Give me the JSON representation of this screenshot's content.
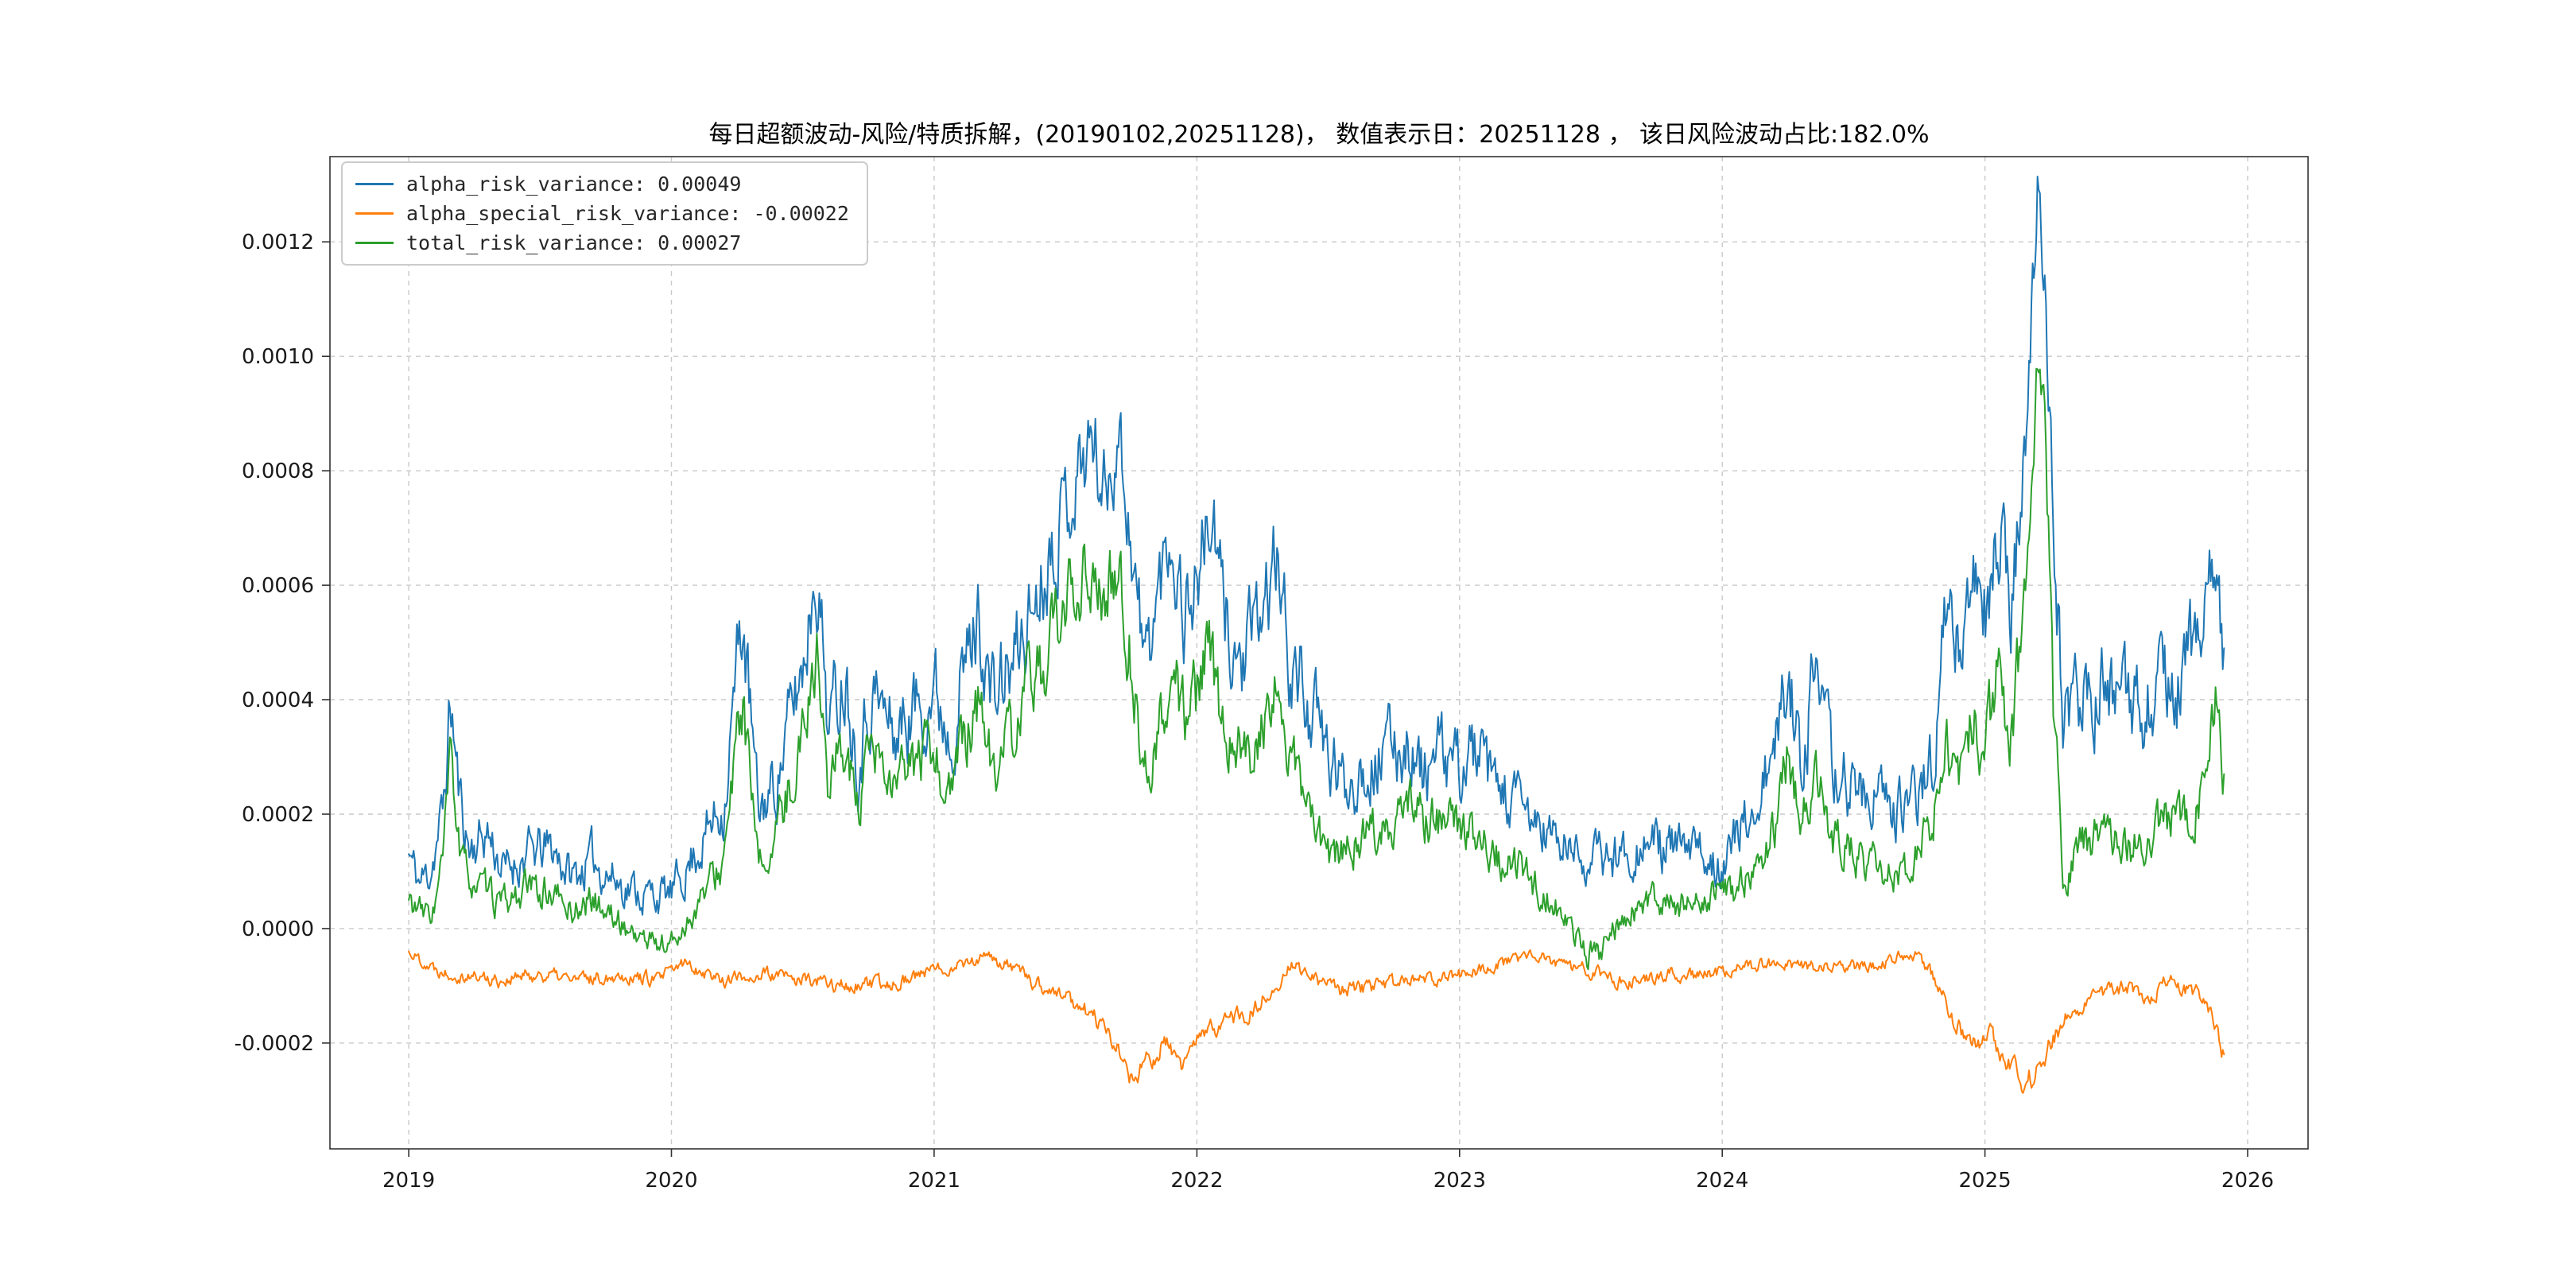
{
  "page": {
    "background": "#ffffff"
  },
  "chart_data": {
    "type": "line",
    "title": "每日超额波动-风险/特质拆解，(20190102,20251128)， 数值表示日：20251128 ， 该日风险波动占比:182.0%",
    "value_date": "20251128",
    "risk_ratio_pct": "182.0%",
    "date_range": [
      "20190102",
      "20251128"
    ],
    "grid": {
      "visible": true,
      "style": "dashed",
      "color": "#c9c9c9"
    },
    "legend": {
      "position": "upper-left"
    },
    "xlim": [
      2018.7,
      2026.23
    ],
    "ylim": [
      -0.000385,
      0.001349
    ],
    "x_tick_values": [
      2019,
      2020,
      2021,
      2022,
      2023,
      2024,
      2025,
      2026
    ],
    "x_tick_labels": [
      "2019",
      "2020",
      "2021",
      "2022",
      "2023",
      "2024",
      "2025",
      "2026"
    ],
    "y_tick_values": [
      -0.0002,
      0.0,
      0.0002,
      0.0004,
      0.0006,
      0.0008,
      0.001,
      0.0012
    ],
    "y_tick_labels": [
      "-0.0002",
      "0.0000",
      "0.0002",
      "0.0004",
      "0.0006",
      "0.0008",
      "0.0010",
      "0.0012"
    ],
    "series": [
      {
        "name": "alpha_risk_variance",
        "label": "alpha_risk_variance: 0.00049",
        "last_value": 0.00049,
        "color": "#1f77b4",
        "noise_amp": 6.5e-05,
        "seed": 11,
        "keypoints": [
          [
            2019.0,
            0.00013
          ],
          [
            2019.04,
            8e-05
          ],
          [
            2019.08,
            0.0001
          ],
          [
            2019.13,
            0.0002
          ],
          [
            2019.16,
            0.0004
          ],
          [
            2019.19,
            0.00024
          ],
          [
            2019.23,
            0.00014
          ],
          [
            2019.3,
            0.00017
          ],
          [
            2019.36,
            0.0001
          ],
          [
            2019.45,
            0.00013
          ],
          [
            2019.55,
            0.00014
          ],
          [
            2019.62,
            9e-05
          ],
          [
            2019.7,
            0.00012
          ],
          [
            2019.8,
            8e-05
          ],
          [
            2019.9,
            6e-05
          ],
          [
            2020.0,
            6e-05
          ],
          [
            2020.1,
            0.00014
          ],
          [
            2020.2,
            0.00022
          ],
          [
            2020.27,
            0.00055
          ],
          [
            2020.33,
            0.0002
          ],
          [
            2020.4,
            0.00026
          ],
          [
            2020.5,
            0.00046
          ],
          [
            2020.55,
            0.00065
          ],
          [
            2020.6,
            0.00036
          ],
          [
            2020.66,
            0.00046
          ],
          [
            2020.71,
            0.0003
          ],
          [
            2020.76,
            0.00042
          ],
          [
            2020.85,
            0.00034
          ],
          [
            2020.95,
            0.0004
          ],
          [
            2021.0,
            0.00042
          ],
          [
            2021.06,
            0.00035
          ],
          [
            2021.12,
            0.00046
          ],
          [
            2021.17,
            0.00055
          ],
          [
            2021.22,
            0.0004
          ],
          [
            2021.3,
            0.00046
          ],
          [
            2021.4,
            0.0006
          ],
          [
            2021.46,
            0.0007
          ],
          [
            2021.55,
            0.0008
          ],
          [
            2021.6,
            0.00086
          ],
          [
            2021.65,
            0.00076
          ],
          [
            2021.7,
            0.00088
          ],
          [
            2021.75,
            0.00068
          ],
          [
            2021.8,
            0.00046
          ],
          [
            2021.86,
            0.0006
          ],
          [
            2021.9,
            0.0007
          ],
          [
            2021.95,
            0.00056
          ],
          [
            2022.0,
            0.00061
          ],
          [
            2022.05,
            0.00072
          ],
          [
            2022.1,
            0.00056
          ],
          [
            2022.16,
            0.00046
          ],
          [
            2022.22,
            0.0005
          ],
          [
            2022.3,
            0.00064
          ],
          [
            2022.36,
            0.00046
          ],
          [
            2022.42,
            0.0004
          ],
          [
            2022.5,
            0.0003
          ],
          [
            2022.56,
            0.00025
          ],
          [
            2022.62,
            0.00028
          ],
          [
            2022.7,
            0.0003
          ],
          [
            2022.8,
            0.00033
          ],
          [
            2022.86,
            0.00027
          ],
          [
            2022.92,
            0.0003
          ],
          [
            2023.0,
            0.00028
          ],
          [
            2023.06,
            0.00031
          ],
          [
            2023.12,
            0.00025
          ],
          [
            2023.2,
            0.00022
          ],
          [
            2023.3,
            0.00018
          ],
          [
            2023.4,
            0.00014
          ],
          [
            2023.5,
            0.00012
          ],
          [
            2023.6,
            0.00013
          ],
          [
            2023.7,
            0.00015
          ],
          [
            2023.8,
            0.00014
          ],
          [
            2023.9,
            0.00013
          ],
          [
            2024.0,
            0.00012
          ],
          [
            2024.1,
            0.00019
          ],
          [
            2024.2,
            0.0003
          ],
          [
            2024.25,
            0.00045
          ],
          [
            2024.3,
            0.0003
          ],
          [
            2024.35,
            0.00043
          ],
          [
            2024.42,
            0.00028
          ],
          [
            2024.5,
            0.00025
          ],
          [
            2024.6,
            0.00022
          ],
          [
            2024.7,
            0.0002
          ],
          [
            2024.8,
            0.0003
          ],
          [
            2024.85,
            0.00055
          ],
          [
            2024.9,
            0.00048
          ],
          [
            2024.95,
            0.00062
          ],
          [
            2025.0,
            0.00055
          ],
          [
            2025.05,
            0.0007
          ],
          [
            2025.1,
            0.00058
          ],
          [
            2025.15,
            0.0008
          ],
          [
            2025.2,
            0.00125
          ],
          [
            2025.23,
            0.00118
          ],
          [
            2025.26,
            0.0007
          ],
          [
            2025.3,
            0.00035
          ],
          [
            2025.36,
            0.0004
          ],
          [
            2025.45,
            0.00042
          ],
          [
            2025.55,
            0.00038
          ],
          [
            2025.65,
            0.0004
          ],
          [
            2025.75,
            0.00043
          ],
          [
            2025.8,
            0.0005
          ],
          [
            2025.85,
            0.00058
          ],
          [
            2025.88,
            0.00065
          ],
          [
            2025.91,
            0.00049
          ]
        ]
      },
      {
        "name": "alpha_special_risk_variance",
        "label": "alpha_special_risk_variance: -0.00022",
        "last_value": -0.00022,
        "color": "#ff7f0e",
        "noise_amp": 2.2e-05,
        "seed": 22,
        "keypoints": [
          [
            2019.0,
            -4e-05
          ],
          [
            2019.1,
            -7e-05
          ],
          [
            2019.2,
            -8e-05
          ],
          [
            2019.35,
            -9e-05
          ],
          [
            2019.5,
            -8e-05
          ],
          [
            2019.65,
            -9e-05
          ],
          [
            2019.8,
            -8e-05
          ],
          [
            2019.95,
            -9e-05
          ],
          [
            2020.05,
            -6e-05
          ],
          [
            2020.2,
            -9e-05
          ],
          [
            2020.35,
            -8e-05
          ],
          [
            2020.5,
            -9e-05
          ],
          [
            2020.65,
            -0.0001
          ],
          [
            2020.8,
            -0.0001
          ],
          [
            2020.95,
            -8e-05
          ],
          [
            2021.1,
            -6e-05
          ],
          [
            2021.2,
            -5e-05
          ],
          [
            2021.3,
            -7e-05
          ],
          [
            2021.4,
            -0.0001
          ],
          [
            2021.5,
            -0.00012
          ],
          [
            2021.6,
            -0.00015
          ],
          [
            2021.7,
            -0.00021
          ],
          [
            2021.76,
            -0.00027
          ],
          [
            2021.82,
            -0.00023
          ],
          [
            2021.88,
            -0.0002
          ],
          [
            2021.94,
            -0.00024
          ],
          [
            2022.0,
            -0.0002
          ],
          [
            2022.1,
            -0.00016
          ],
          [
            2022.2,
            -0.00015
          ],
          [
            2022.3,
            -0.0001
          ],
          [
            2022.36,
            -6e-05
          ],
          [
            2022.45,
            -9e-05
          ],
          [
            2022.55,
            -0.00011
          ],
          [
            2022.7,
            -0.0001
          ],
          [
            2022.85,
            -9e-05
          ],
          [
            2023.0,
            -8e-05
          ],
          [
            2023.15,
            -6e-05
          ],
          [
            2023.3,
            -5e-05
          ],
          [
            2023.45,
            -7e-05
          ],
          [
            2023.6,
            -9e-05
          ],
          [
            2023.75,
            -8e-05
          ],
          [
            2023.9,
            -8e-05
          ],
          [
            2024.05,
            -7e-05
          ],
          [
            2024.2,
            -6e-05
          ],
          [
            2024.35,
            -7e-05
          ],
          [
            2024.5,
            -7e-05
          ],
          [
            2024.6,
            -6e-05
          ],
          [
            2024.72,
            -4e-05
          ],
          [
            2024.8,
            -8e-05
          ],
          [
            2024.88,
            -0.00016
          ],
          [
            2024.95,
            -0.0002
          ],
          [
            2025.02,
            -0.00019
          ],
          [
            2025.08,
            -0.00023
          ],
          [
            2025.15,
            -0.00027
          ],
          [
            2025.2,
            -0.00025
          ],
          [
            2025.26,
            -0.00019
          ],
          [
            2025.32,
            -0.00015
          ],
          [
            2025.4,
            -0.00012
          ],
          [
            2025.48,
            -0.00011
          ],
          [
            2025.55,
            -0.0001
          ],
          [
            2025.62,
            -0.00012
          ],
          [
            2025.7,
            -9e-05
          ],
          [
            2025.78,
            -0.00011
          ],
          [
            2025.84,
            -0.00012
          ],
          [
            2025.88,
            -0.00017
          ],
          [
            2025.91,
            -0.00022
          ]
        ]
      },
      {
        "name": "total_risk_variance",
        "label": "total_risk_variance: 0.00027",
        "last_value": 0.00027,
        "color": "#2ca02c",
        "noise_amp": 5.5e-05,
        "seed": 33,
        "keypoints": [
          [
            2019.0,
            5e-05
          ],
          [
            2019.06,
            2e-05
          ],
          [
            2019.1,
            4e-05
          ],
          [
            2019.13,
            0.00012
          ],
          [
            2019.16,
            0.0003
          ],
          [
            2019.2,
            0.00011
          ],
          [
            2019.27,
            7e-05
          ],
          [
            2019.36,
            4e-05
          ],
          [
            2019.45,
            7e-05
          ],
          [
            2019.55,
            6e-05
          ],
          [
            2019.62,
            3e-05
          ],
          [
            2019.7,
            5e-05
          ],
          [
            2019.8,
            1e-05
          ],
          [
            2019.9,
            -2e-05
          ],
          [
            2020.0,
            -3e-05
          ],
          [
            2020.1,
            4e-05
          ],
          [
            2020.2,
            0.00012
          ],
          [
            2020.27,
            0.0004
          ],
          [
            2020.33,
            0.0001
          ],
          [
            2020.4,
            0.00016
          ],
          [
            2020.5,
            0.00034
          ],
          [
            2020.55,
            0.0005
          ],
          [
            2020.6,
            0.00024
          ],
          [
            2020.66,
            0.00034
          ],
          [
            2020.71,
            0.00019
          ],
          [
            2020.76,
            0.0003
          ],
          [
            2020.85,
            0.00024
          ],
          [
            2020.95,
            0.0003
          ],
          [
            2021.0,
            0.0003
          ],
          [
            2021.06,
            0.00024
          ],
          [
            2021.12,
            0.00033
          ],
          [
            2021.17,
            0.0004
          ],
          [
            2021.22,
            0.00028
          ],
          [
            2021.3,
            0.00033
          ],
          [
            2021.4,
            0.00046
          ],
          [
            2021.5,
            0.00055
          ],
          [
            2021.58,
            0.00065
          ],
          [
            2021.65,
            0.00056
          ],
          [
            2021.7,
            0.00062
          ],
          [
            2021.75,
            0.00048
          ],
          [
            2021.8,
            0.00026
          ],
          [
            2021.86,
            0.00036
          ],
          [
            2021.9,
            0.00046
          ],
          [
            2021.95,
            0.00036
          ],
          [
            2022.0,
            0.0004
          ],
          [
            2022.05,
            0.00048
          ],
          [
            2022.1,
            0.00036
          ],
          [
            2022.2,
            0.0003
          ],
          [
            2022.3,
            0.00041
          ],
          [
            2022.4,
            0.00023
          ],
          [
            2022.5,
            0.00012
          ],
          [
            2022.6,
            0.00015
          ],
          [
            2022.7,
            0.00018
          ],
          [
            2022.8,
            0.00022
          ],
          [
            2022.9,
            0.00019
          ],
          [
            2023.0,
            0.00018
          ],
          [
            2023.1,
            0.00015
          ],
          [
            2023.2,
            0.00011
          ],
          [
            2023.3,
            7e-05
          ],
          [
            2023.4,
            2e-05
          ],
          [
            2023.46,
            -3e-05
          ],
          [
            2023.52,
            -5e-05
          ],
          [
            2023.58,
            -1e-05
          ],
          [
            2023.65,
            3e-05
          ],
          [
            2023.75,
            5e-05
          ],
          [
            2023.85,
            4e-05
          ],
          [
            2023.95,
            5e-05
          ],
          [
            2024.05,
            7e-05
          ],
          [
            2024.12,
            0.0001
          ],
          [
            2024.2,
            0.00018
          ],
          [
            2024.25,
            0.0003
          ],
          [
            2024.3,
            0.00017
          ],
          [
            2024.35,
            0.00028
          ],
          [
            2024.42,
            0.00015
          ],
          [
            2024.5,
            0.00013
          ],
          [
            2024.6,
            0.00011
          ],
          [
            2024.7,
            0.0001
          ],
          [
            2024.8,
            0.00018
          ],
          [
            2024.85,
            0.00034
          ],
          [
            2024.9,
            0.00028
          ],
          [
            2024.95,
            0.00038
          ],
          [
            2025.0,
            0.0003
          ],
          [
            2025.05,
            0.00044
          ],
          [
            2025.1,
            0.00034
          ],
          [
            2025.15,
            0.00055
          ],
          [
            2025.2,
            0.001
          ],
          [
            2025.23,
            0.00092
          ],
          [
            2025.26,
            0.0004
          ],
          [
            2025.3,
            8e-05
          ],
          [
            2025.36,
            0.00014
          ],
          [
            2025.45,
            0.00018
          ],
          [
            2025.55,
            0.00014
          ],
          [
            2025.65,
            0.00017
          ],
          [
            2025.75,
            0.0002
          ],
          [
            2025.8,
            0.00022
          ],
          [
            2025.85,
            0.0003
          ],
          [
            2025.88,
            0.0004
          ],
          [
            2025.91,
            0.00027
          ]
        ]
      }
    ]
  }
}
